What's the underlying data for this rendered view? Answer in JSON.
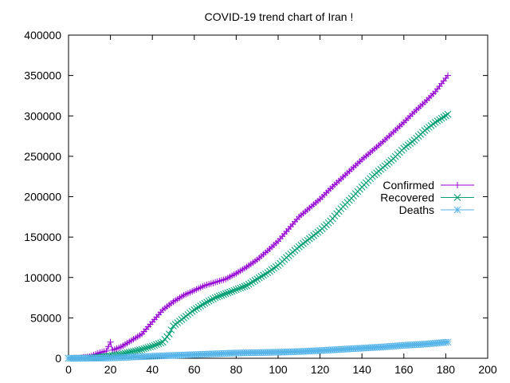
{
  "chart_data": {
    "type": "line",
    "title": "COVID-19 trend chart of Iran !",
    "xlabel": "",
    "ylabel": "",
    "xlim": [
      0,
      200
    ],
    "ylim": [
      0,
      400000
    ],
    "x_ticks": [
      0,
      20,
      40,
      60,
      80,
      100,
      120,
      140,
      160,
      180,
      200
    ],
    "y_ticks": [
      0,
      50000,
      100000,
      150000,
      200000,
      250000,
      300000,
      350000,
      400000
    ],
    "legend_position": "right",
    "grid": false,
    "series": [
      {
        "name": "Confirmed",
        "color": "#9400d3",
        "marker": "plus",
        "x": [
          0,
          5,
          10,
          15,
          18,
          20,
          21,
          25,
          30,
          35,
          40,
          45,
          50,
          55,
          60,
          65,
          70,
          75,
          80,
          85,
          90,
          95,
          100,
          105,
          110,
          115,
          120,
          125,
          130,
          135,
          140,
          145,
          150,
          155,
          160,
          165,
          170,
          175,
          181
        ],
        "y": [
          0,
          200,
          2000,
          7000,
          9000,
          20000,
          10000,
          14000,
          22000,
          30000,
          45000,
          60000,
          70000,
          78000,
          84000,
          90000,
          94000,
          98000,
          105000,
          113000,
          122000,
          133000,
          145000,
          160000,
          175000,
          186000,
          197000,
          210000,
          222000,
          234000,
          246000,
          257000,
          268000,
          280000,
          292000,
          305000,
          317000,
          330000,
          350000
        ]
      },
      {
        "name": "Recovered",
        "color": "#009e73",
        "marker": "cross",
        "x": [
          0,
          5,
          10,
          15,
          20,
          25,
          30,
          35,
          40,
          45,
          48,
          50,
          55,
          60,
          65,
          70,
          75,
          80,
          85,
          90,
          95,
          100,
          105,
          110,
          115,
          120,
          125,
          130,
          135,
          140,
          145,
          150,
          155,
          160,
          165,
          170,
          175,
          181
        ],
        "y": [
          0,
          0,
          300,
          1500,
          3000,
          5000,
          8000,
          11000,
          15000,
          20000,
          30000,
          40000,
          50000,
          60000,
          68000,
          75000,
          80000,
          85000,
          90000,
          98000,
          106000,
          115000,
          127000,
          138000,
          148000,
          158000,
          170000,
          185000,
          198000,
          212000,
          225000,
          236000,
          247000,
          260000,
          270000,
          282000,
          292000,
          302000
        ]
      },
      {
        "name": "Deaths",
        "color": "#56b4e9",
        "marker": "star",
        "x": [
          0,
          10,
          20,
          30,
          40,
          50,
          60,
          70,
          80,
          90,
          100,
          110,
          120,
          130,
          140,
          150,
          160,
          170,
          181
        ],
        "y": [
          0,
          50,
          300,
          1500,
          2500,
          3500,
          4500,
          5500,
          6500,
          7000,
          7500,
          8300,
          9500,
          11000,
          12500,
          14000,
          16000,
          17500,
          20000
        ]
      }
    ]
  }
}
